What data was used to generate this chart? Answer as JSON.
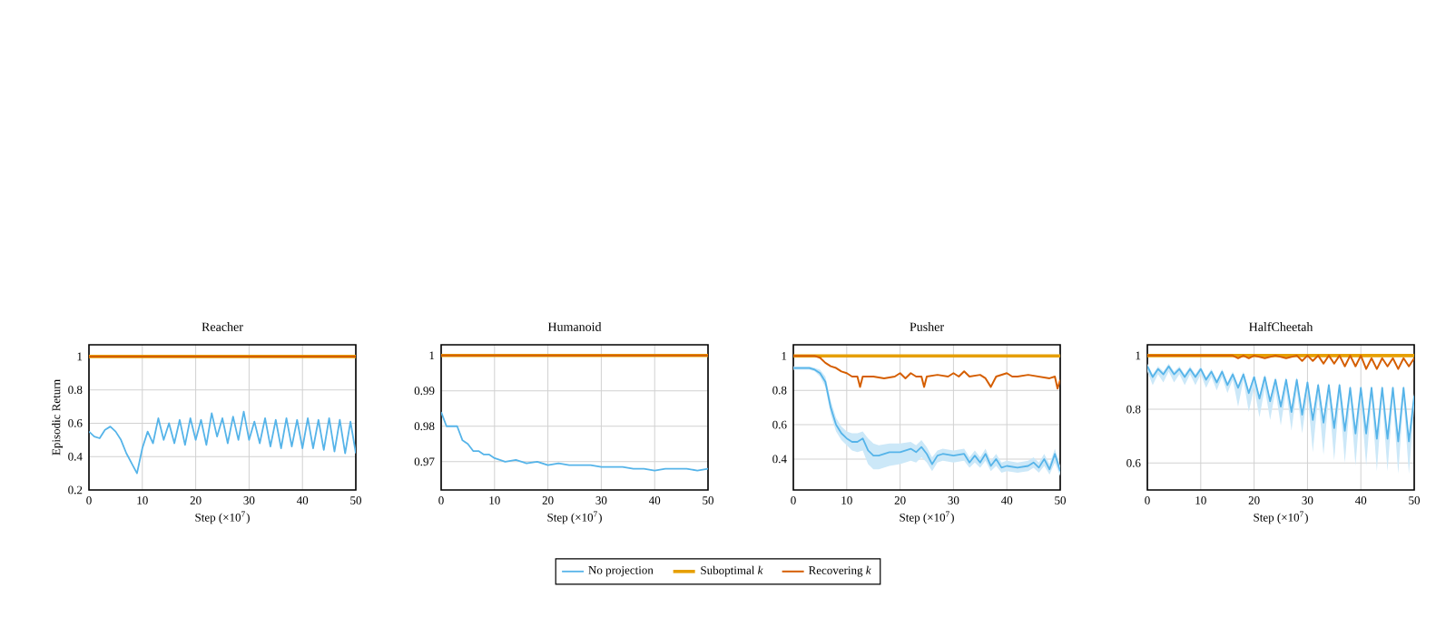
{
  "chart_data": [
    {
      "type": "line",
      "title": "Reacher",
      "xlabel": "Step (×10$^{7}$)",
      "ylabel": "Episodic Return",
      "xlim": [
        0,
        50
      ],
      "ylim": [
        0.2,
        1.07
      ],
      "xticks": [
        0,
        10,
        20,
        30,
        40,
        50
      ],
      "yticks": [
        0.2,
        0.4,
        0.6,
        0.8,
        1
      ],
      "grid": true,
      "marker": "none",
      "line_style": "solid",
      "legend": "bottom",
      "series": [
        {
          "name": "No projection",
          "color": "#56b4e9",
          "x": [
            0,
            1,
            2,
            3,
            4,
            5,
            6,
            7,
            8,
            9,
            10,
            11,
            12,
            13,
            14,
            15,
            16,
            17,
            18,
            19,
            20,
            21,
            22,
            23,
            24,
            25,
            26,
            27,
            28,
            29,
            30,
            31,
            32,
            33,
            34,
            35,
            36,
            37,
            38,
            39,
            40,
            41,
            42,
            43,
            44,
            45,
            46,
            47,
            48,
            49,
            50
          ],
          "values": [
            0.55,
            0.52,
            0.51,
            0.56,
            0.58,
            0.55,
            0.5,
            0.42,
            0.36,
            0.3,
            0.45,
            0.55,
            0.48,
            0.63,
            0.5,
            0.6,
            0.48,
            0.62,
            0.47,
            0.63,
            0.5,
            0.62,
            0.47,
            0.66,
            0.52,
            0.63,
            0.48,
            0.64,
            0.5,
            0.67,
            0.5,
            0.61,
            0.48,
            0.63,
            0.46,
            0.62,
            0.45,
            0.63,
            0.46,
            0.62,
            0.45,
            0.63,
            0.45,
            0.62,
            0.44,
            0.63,
            0.43,
            0.62,
            0.42,
            0.61,
            0.42
          ]
        },
        {
          "name": "Suboptimal *k*",
          "color": "#e69f00",
          "x": [
            0,
            50
          ],
          "values": [
            1,
            1
          ]
        },
        {
          "name": "Recovering *k*",
          "color": "#d55e00",
          "x": [
            0,
            50
          ],
          "values": [
            1,
            1
          ]
        }
      ]
    },
    {
      "type": "line",
      "title": "Humanoid",
      "xlabel": "Step (×10$^{7}$)",
      "xlim": [
        0,
        50
      ],
      "ylim": [
        0.962,
        1.003
      ],
      "xticks": [
        0,
        10,
        20,
        30,
        40,
        50
      ],
      "yticks": [
        0.97,
        0.98,
        0.99,
        1
      ],
      "grid": true,
      "marker": "none",
      "line_style": "solid",
      "series": [
        {
          "color": "#56b4e9",
          "x": [
            0,
            1,
            2,
            3,
            4,
            5,
            6,
            7,
            8,
            9,
            10,
            12,
            14,
            16,
            18,
            20,
            22,
            24,
            26,
            28,
            30,
            32,
            34,
            36,
            38,
            40,
            42,
            44,
            46,
            48,
            50
          ],
          "values": [
            0.984,
            0.98,
            0.98,
            0.98,
            0.976,
            0.975,
            0.973,
            0.973,
            0.972,
            0.972,
            0.971,
            0.97,
            0.9705,
            0.9695,
            0.97,
            0.969,
            0.9695,
            0.969,
            0.969,
            0.969,
            0.9685,
            0.9685,
            0.9685,
            0.968,
            0.968,
            0.9675,
            0.968,
            0.968,
            0.968,
            0.9675,
            0.968
          ]
        },
        {
          "color": "#e69f00",
          "x": [
            0,
            50
          ],
          "values": [
            1,
            1
          ]
        },
        {
          "color": "#d55e00",
          "x": [
            0,
            50
          ],
          "values": [
            1,
            1
          ]
        }
      ]
    },
    {
      "type": "line",
      "title": "Pusher",
      "xlabel": "Step (×10$^{7}$)",
      "xlim": [
        0,
        50
      ],
      "ylim": [
        0.22,
        1.065
      ],
      "xticks": [
        0,
        10,
        20,
        30,
        40,
        50
      ],
      "yticks": [
        0.4,
        0.6,
        0.8,
        1
      ],
      "grid": true,
      "marker": "none",
      "line_style": "solid",
      "series": [
        {
          "color": "#56b4e9",
          "x": [
            0,
            3,
            4,
            5,
            6,
            7,
            8,
            9,
            10,
            11,
            12,
            13,
            14,
            15,
            16,
            18,
            20,
            22,
            23,
            24,
            25,
            26,
            27,
            28,
            30,
            32,
            33,
            34,
            35,
            36,
            37,
            38,
            39,
            40,
            42,
            44,
            45,
            46,
            47,
            48,
            49,
            50
          ],
          "values": [
            0.93,
            0.93,
            0.92,
            0.9,
            0.85,
            0.7,
            0.6,
            0.55,
            0.52,
            0.5,
            0.5,
            0.52,
            0.45,
            0.42,
            0.42,
            0.44,
            0.44,
            0.46,
            0.44,
            0.47,
            0.43,
            0.37,
            0.42,
            0.43,
            0.42,
            0.43,
            0.38,
            0.42,
            0.38,
            0.43,
            0.36,
            0.4,
            0.35,
            0.36,
            0.35,
            0.36,
            0.38,
            0.35,
            0.4,
            0.34,
            0.43,
            0.33
          ],
          "lower": [
            0.92,
            0.92,
            0.91,
            0.88,
            0.82,
            0.66,
            0.56,
            0.51,
            0.48,
            0.45,
            0.44,
            0.45,
            0.37,
            0.34,
            0.34,
            0.36,
            0.37,
            0.39,
            0.38,
            0.41,
            0.38,
            0.33,
            0.38,
            0.39,
            0.38,
            0.39,
            0.35,
            0.38,
            0.35,
            0.39,
            0.33,
            0.36,
            0.32,
            0.33,
            0.32,
            0.33,
            0.35,
            0.32,
            0.36,
            0.31,
            0.38,
            0.3
          ],
          "upper": [
            0.94,
            0.94,
            0.93,
            0.92,
            0.88,
            0.74,
            0.64,
            0.59,
            0.56,
            0.55,
            0.55,
            0.56,
            0.52,
            0.49,
            0.48,
            0.49,
            0.49,
            0.5,
            0.48,
            0.51,
            0.47,
            0.41,
            0.45,
            0.46,
            0.45,
            0.46,
            0.41,
            0.45,
            0.41,
            0.46,
            0.39,
            0.43,
            0.38,
            0.39,
            0.38,
            0.39,
            0.41,
            0.38,
            0.43,
            0.37,
            0.46,
            0.36
          ]
        },
        {
          "color": "#e69f00",
          "x": [
            0,
            50
          ],
          "values": [
            1,
            1
          ]
        },
        {
          "color": "#d55e00",
          "x": [
            0,
            4,
            5,
            6,
            7,
            8,
            9,
            10,
            11,
            12,
            12.5,
            13,
            15,
            17,
            19,
            20,
            21,
            22,
            23,
            24,
            24.5,
            25,
            27,
            29,
            30,
            31,
            32,
            33,
            35,
            36,
            37,
            38,
            40,
            41,
            42,
            44,
            46,
            48,
            49,
            49.5,
            50
          ],
          "values": [
            1,
            1,
            0.99,
            0.96,
            0.94,
            0.93,
            0.91,
            0.9,
            0.88,
            0.88,
            0.82,
            0.88,
            0.88,
            0.87,
            0.88,
            0.9,
            0.87,
            0.9,
            0.88,
            0.88,
            0.82,
            0.88,
            0.89,
            0.88,
            0.9,
            0.88,
            0.91,
            0.88,
            0.89,
            0.87,
            0.82,
            0.88,
            0.9,
            0.88,
            0.88,
            0.89,
            0.88,
            0.87,
            0.88,
            0.81,
            0.86
          ]
        }
      ]
    },
    {
      "type": "line",
      "title": "HalfCheetah",
      "xlabel": "Step (×10$^{7}$)",
      "xlim": [
        0,
        50
      ],
      "ylim": [
        0.5,
        1.04
      ],
      "xticks": [
        0,
        10,
        20,
        30,
        40,
        50
      ],
      "yticks": [
        0.6,
        0.8,
        1
      ],
      "grid": true,
      "marker": "none",
      "line_style": "solid",
      "series": [
        {
          "color": "#56b4e9",
          "x": [
            0,
            1,
            2,
            3,
            4,
            5,
            6,
            7,
            8,
            9,
            10,
            11,
            12,
            13,
            14,
            15,
            16,
            17,
            18,
            19,
            20,
            21,
            22,
            23,
            24,
            25,
            26,
            27,
            28,
            29,
            30,
            31,
            32,
            33,
            34,
            35,
            36,
            37,
            38,
            39,
            40,
            41,
            42,
            43,
            44,
            45,
            46,
            47,
            48,
            49,
            50
          ],
          "values": [
            0.96,
            0.92,
            0.95,
            0.93,
            0.96,
            0.93,
            0.95,
            0.92,
            0.95,
            0.92,
            0.95,
            0.91,
            0.94,
            0.9,
            0.94,
            0.89,
            0.93,
            0.88,
            0.93,
            0.86,
            0.92,
            0.84,
            0.92,
            0.83,
            0.91,
            0.81,
            0.91,
            0.79,
            0.91,
            0.78,
            0.9,
            0.76,
            0.89,
            0.75,
            0.89,
            0.73,
            0.89,
            0.72,
            0.88,
            0.71,
            0.88,
            0.71,
            0.88,
            0.69,
            0.88,
            0.69,
            0.88,
            0.68,
            0.88,
            0.68,
            0.85
          ],
          "lower": [
            0.94,
            0.89,
            0.93,
            0.9,
            0.94,
            0.9,
            0.93,
            0.89,
            0.93,
            0.89,
            0.93,
            0.88,
            0.92,
            0.87,
            0.92,
            0.86,
            0.91,
            0.81,
            0.91,
            0.79,
            0.88,
            0.77,
            0.88,
            0.76,
            0.87,
            0.74,
            0.87,
            0.72,
            0.87,
            0.71,
            0.86,
            0.64,
            0.85,
            0.63,
            0.85,
            0.61,
            0.85,
            0.6,
            0.84,
            0.59,
            0.84,
            0.59,
            0.84,
            0.57,
            0.84,
            0.57,
            0.84,
            0.56,
            0.84,
            0.56,
            0.81
          ],
          "upper": [
            0.97,
            0.93,
            0.96,
            0.94,
            0.97,
            0.94,
            0.96,
            0.93,
            0.96,
            0.93,
            0.96,
            0.92,
            0.95,
            0.91,
            0.95,
            0.9,
            0.94,
            0.89,
            0.94,
            0.87,
            0.93,
            0.85,
            0.93,
            0.84,
            0.92,
            0.82,
            0.92,
            0.8,
            0.92,
            0.79,
            0.91,
            0.77,
            0.9,
            0.76,
            0.9,
            0.74,
            0.9,
            0.73,
            0.89,
            0.72,
            0.89,
            0.72,
            0.89,
            0.7,
            0.89,
            0.7,
            0.89,
            0.69,
            0.89,
            0.69,
            0.86
          ]
        },
        {
          "color": "#e69f00",
          "x": [
            0,
            50
          ],
          "values": [
            1,
            1
          ]
        },
        {
          "color": "#d55e00",
          "x": [
            0,
            16,
            17,
            18,
            19,
            20,
            22,
            24,
            26,
            28,
            29,
            30,
            31,
            32,
            33,
            34,
            35,
            36,
            37,
            38,
            39,
            40,
            41,
            42,
            43,
            44,
            45,
            46,
            47,
            48,
            49,
            50
          ],
          "values": [
            1,
            1,
            0.99,
            1,
            0.99,
            1,
            0.99,
            1,
            0.99,
            1,
            0.98,
            1,
            0.98,
            1,
            0.97,
            1,
            0.97,
            1,
            0.96,
            1,
            0.96,
            1,
            0.95,
            0.99,
            0.95,
            0.99,
            0.96,
            0.99,
            0.95,
            0.99,
            0.96,
            0.99
          ]
        }
      ]
    }
  ]
}
